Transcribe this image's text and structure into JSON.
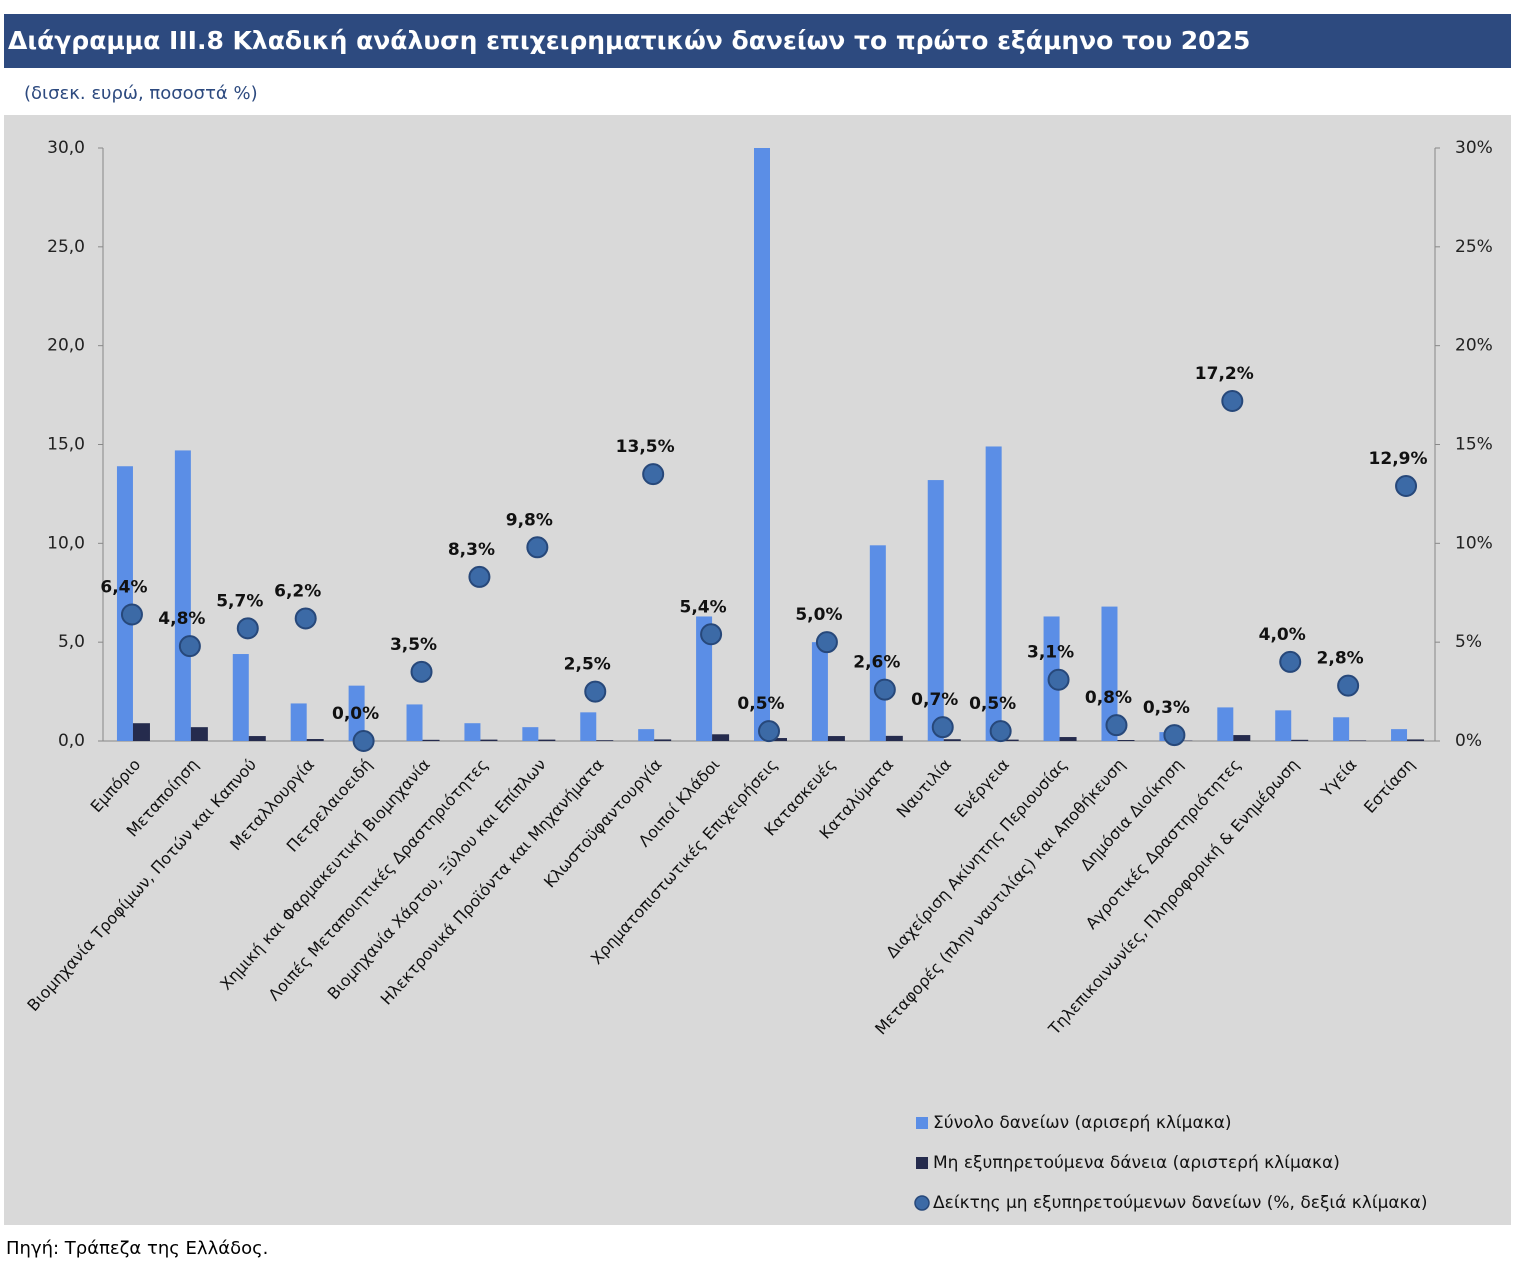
{
  "chart_data": {
    "type": "bar",
    "title": "Διάγραμμα III.8 Κλαδική ανάλυση επιχειρηματικών δανείων το πρώτο εξάμηνο του 2025",
    "subtitle": "(δισεκ. ευρώ, ποσοστά %)",
    "source": "Πηγή: Τράπεζα της Ελλάδος.",
    "categories": [
      "Εμπόριο",
      "Μεταποίηση",
      "Βιομηχανία Τροφίμων, Ποτών και Καπνού",
      "Μεταλλουργία",
      "Πετρελαιοειδή",
      "Χημική και Φαρμακευτική Βιομηχανία",
      "Λοιπές Μεταποιητικές Δραστηριότητες",
      "Βιομηχανία Χάρτου, Ξύλου και Επίπλων",
      "Ηλεκτρονικά Προϊόντα και Μηχανήματα",
      "Κλωστοϋφαντουργία",
      "Λοιποί Κλάδοι",
      "Χρηματοπιστωτικές Επιχειρήσεις",
      "Κατασκευές",
      "Καταλύματα",
      "Ναυτιλία",
      "Ενέργεια",
      "Διαχείριση Ακίνητης Περιουσίας",
      "Μεταφορές (πλην ναυτιλίας) και Αποθήκευση",
      "Δημόσια Διοίκηση",
      "Αγροτικές Δραστηριότητες",
      "Τηλεπικοινωνίες, Πληροφορική & Ενημέρωση",
      "Υγεία",
      "Εστίαση"
    ],
    "series": [
      {
        "name": "Σύνολο δανείων (αρισερή κλίμακα)",
        "color": "#5b8ee6",
        "values": [
          13.9,
          14.7,
          4.4,
          1.9,
          2.8,
          1.85,
          0.9,
          0.7,
          1.45,
          0.6,
          6.3,
          30.0,
          5.0,
          9.9,
          13.2,
          14.9,
          6.3,
          6.8,
          0.45,
          1.7,
          1.55,
          1.2,
          0.6
        ]
      },
      {
        "name": "Μη εξυπηρετούμενα δάνεια (αριστερή κλίμακα)",
        "color": "#252b4d",
        "values": [
          0.9,
          0.7,
          0.25,
          0.1,
          0.0,
          0.06,
          0.07,
          0.07,
          0.04,
          0.08,
          0.34,
          0.15,
          0.25,
          0.26,
          0.09,
          0.07,
          0.2,
          0.05,
          0.02,
          0.3,
          0.06,
          0.03,
          0.08
        ]
      },
      {
        "name": "Δείκτης μη εξυπηρετούμενων δανείων (%, δεξιά κλίμακα)",
        "color": "#3c6aa6",
        "axis": "y2",
        "values": [
          6.4,
          4.8,
          5.7,
          6.2,
          0.0,
          3.5,
          8.3,
          9.8,
          2.5,
          13.5,
          5.4,
          0.5,
          5.0,
          2.6,
          0.7,
          0.5,
          3.1,
          0.8,
          0.3,
          17.2,
          4.0,
          2.8,
          12.9
        ],
        "value_labels": [
          "6,4%",
          "4,8%",
          "5,7%",
          "6,2%",
          "0,0%",
          "3,5%",
          "8,3%",
          "9,8%",
          "2,5%",
          "13,5%",
          "5,4%",
          "0,5%",
          "5,0%",
          "2,6%",
          "0,7%",
          "0,5%",
          "3,1%",
          "0,8%",
          "0,3%",
          "17,2%",
          "4,0%",
          "2,8%",
          "12,9%"
        ]
      }
    ],
    "ylim": [
      0,
      30
    ],
    "yticks": [
      {
        "value": 0,
        "label": "0,0"
      },
      {
        "value": 5,
        "label": "5,0"
      },
      {
        "value": 10,
        "label": "10,0"
      },
      {
        "value": 15,
        "label": "15,0"
      },
      {
        "value": 20,
        "label": "20,0"
      },
      {
        "value": 25,
        "label": "25,0"
      },
      {
        "value": 30,
        "label": "30,0"
      }
    ],
    "y2lim": [
      0,
      30
    ],
    "y2ticks": [
      {
        "value": 0,
        "label": "0%"
      },
      {
        "value": 5,
        "label": "5%"
      },
      {
        "value": 10,
        "label": "10%"
      },
      {
        "value": 15,
        "label": "15%"
      },
      {
        "value": 20,
        "label": "20%"
      },
      {
        "value": 25,
        "label": "25%"
      },
      {
        "value": 30,
        "label": "30%"
      }
    ]
  }
}
